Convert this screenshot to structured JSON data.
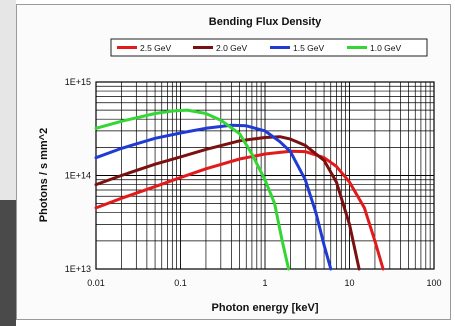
{
  "chart_data": {
    "type": "line",
    "title": "Bending Flux Density",
    "xlabel": "Photon energy [keV]",
    "ylabel": "Photons / s mm^2",
    "xscale": "log",
    "yscale": "log",
    "xlim": [
      0.01,
      100
    ],
    "ylim": [
      10000000000000.0,
      1000000000000000.0
    ],
    "xticks": [
      0.01,
      0.1,
      1,
      10,
      100
    ],
    "xtick_labels": [
      "0.01",
      "0.1",
      "1",
      "10",
      "100"
    ],
    "yticks": [
      10000000000000.0,
      100000000000000.0,
      1000000000000000.0
    ],
    "ytick_labels": [
      "1E+13",
      "1E+14",
      "1E+15"
    ],
    "grid": true,
    "legend_position": "top",
    "series": [
      {
        "name": "2.5 GeV",
        "color": "#e31a1c",
        "points": [
          [
            0.01,
            45000000000000.0
          ],
          [
            0.02,
            57000000000000.0
          ],
          [
            0.05,
            76000000000000.0
          ],
          [
            0.1,
            95000000000000.0
          ],
          [
            0.2,
            118000000000000.0
          ],
          [
            0.5,
            150000000000000.0
          ],
          [
            1,
            170000000000000.0
          ],
          [
            2,
            182000000000000.0
          ],
          [
            3,
            180000000000000.0
          ],
          [
            5,
            155000000000000.0
          ],
          [
            7,
            125000000000000.0
          ],
          [
            10,
            85000000000000.0
          ],
          [
            15,
            45000000000000.0
          ],
          [
            20,
            20000000000000.0
          ],
          [
            25,
            10000000000000.0
          ]
        ]
      },
      {
        "name": "2.0 GeV",
        "color": "#7a1010",
        "points": [
          [
            0.01,
            80000000000000.0
          ],
          [
            0.02,
            100000000000000.0
          ],
          [
            0.05,
            132000000000000.0
          ],
          [
            0.1,
            158000000000000.0
          ],
          [
            0.2,
            190000000000000.0
          ],
          [
            0.5,
            235000000000000.0
          ],
          [
            1,
            255000000000000.0
          ],
          [
            1.5,
            260000000000000.0
          ],
          [
            2,
            245000000000000.0
          ],
          [
            3,
            210000000000000.0
          ],
          [
            5,
            145000000000000.0
          ],
          [
            7,
            85000000000000.0
          ],
          [
            10,
            30000000000000.0
          ],
          [
            13,
            10000000000000.0
          ]
        ]
      },
      {
        "name": "1.5 GeV",
        "color": "#1f3bd4",
        "points": [
          [
            0.01,
            155000000000000.0
          ],
          [
            0.02,
            195000000000000.0
          ],
          [
            0.05,
            250000000000000.0
          ],
          [
            0.1,
            285000000000000.0
          ],
          [
            0.2,
            320000000000000.0
          ],
          [
            0.4,
            345000000000000.0
          ],
          [
            0.6,
            340000000000000.0
          ],
          [
            1,
            300000000000000.0
          ],
          [
            1.5,
            230000000000000.0
          ],
          [
            2,
            180000000000000.0
          ],
          [
            3,
            90000000000000.0
          ],
          [
            4,
            40000000000000.0
          ],
          [
            5,
            18000000000000.0
          ],
          [
            6,
            10000000000000.0
          ]
        ]
      },
      {
        "name": "1.0 GeV",
        "color": "#33d633",
        "points": [
          [
            0.01,
            320000000000000.0
          ],
          [
            0.02,
            380000000000000.0
          ],
          [
            0.05,
            460000000000000.0
          ],
          [
            0.08,
            490000000000000.0
          ],
          [
            0.12,
            500000000000000.0
          ],
          [
            0.2,
            460000000000000.0
          ],
          [
            0.3,
            390000000000000.0
          ],
          [
            0.5,
            280000000000000.0
          ],
          [
            0.7,
            170000000000000.0
          ],
          [
            1,
            90000000000000.0
          ],
          [
            1.3,
            50000000000000.0
          ],
          [
            1.6,
            20000000000000.0
          ],
          [
            1.9,
            10000000000000.0
          ]
        ]
      }
    ]
  }
}
